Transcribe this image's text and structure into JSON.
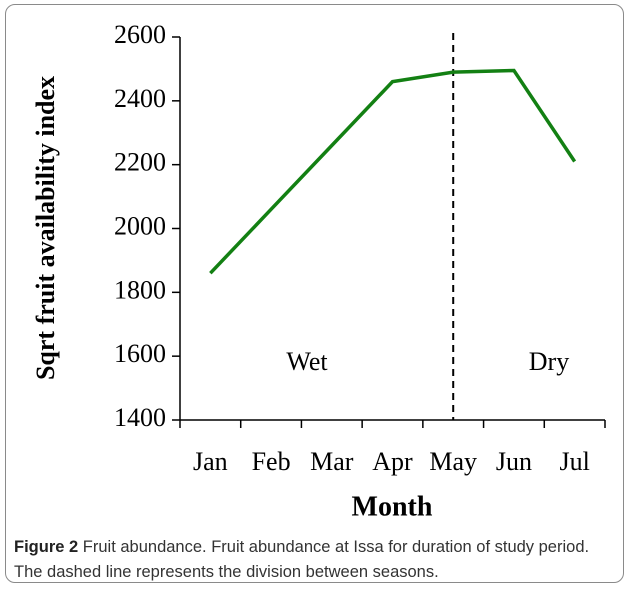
{
  "chart_data": {
    "type": "line",
    "x_label": "Month",
    "y_label": "Sqrt fruit availability index",
    "categories": [
      "Jan",
      "Feb",
      "Mar",
      "Apr",
      "May",
      "Jun",
      "Jul"
    ],
    "values": [
      1860,
      2060,
      2260,
      2460,
      2490,
      2495,
      2210
    ],
    "color": "#138013",
    "ylim": [
      1400,
      2600
    ],
    "yticks": [
      1400,
      1600,
      1800,
      2000,
      2200,
      2400,
      2600
    ],
    "divider_at": "May",
    "annotations": [
      "Wet",
      "Dry"
    ]
  },
  "caption": {
    "label": "Figure 2",
    "text": "Fruit abundance. Fruit abundance at Issa for duration of study period. The dashed line represents the division between seasons."
  }
}
